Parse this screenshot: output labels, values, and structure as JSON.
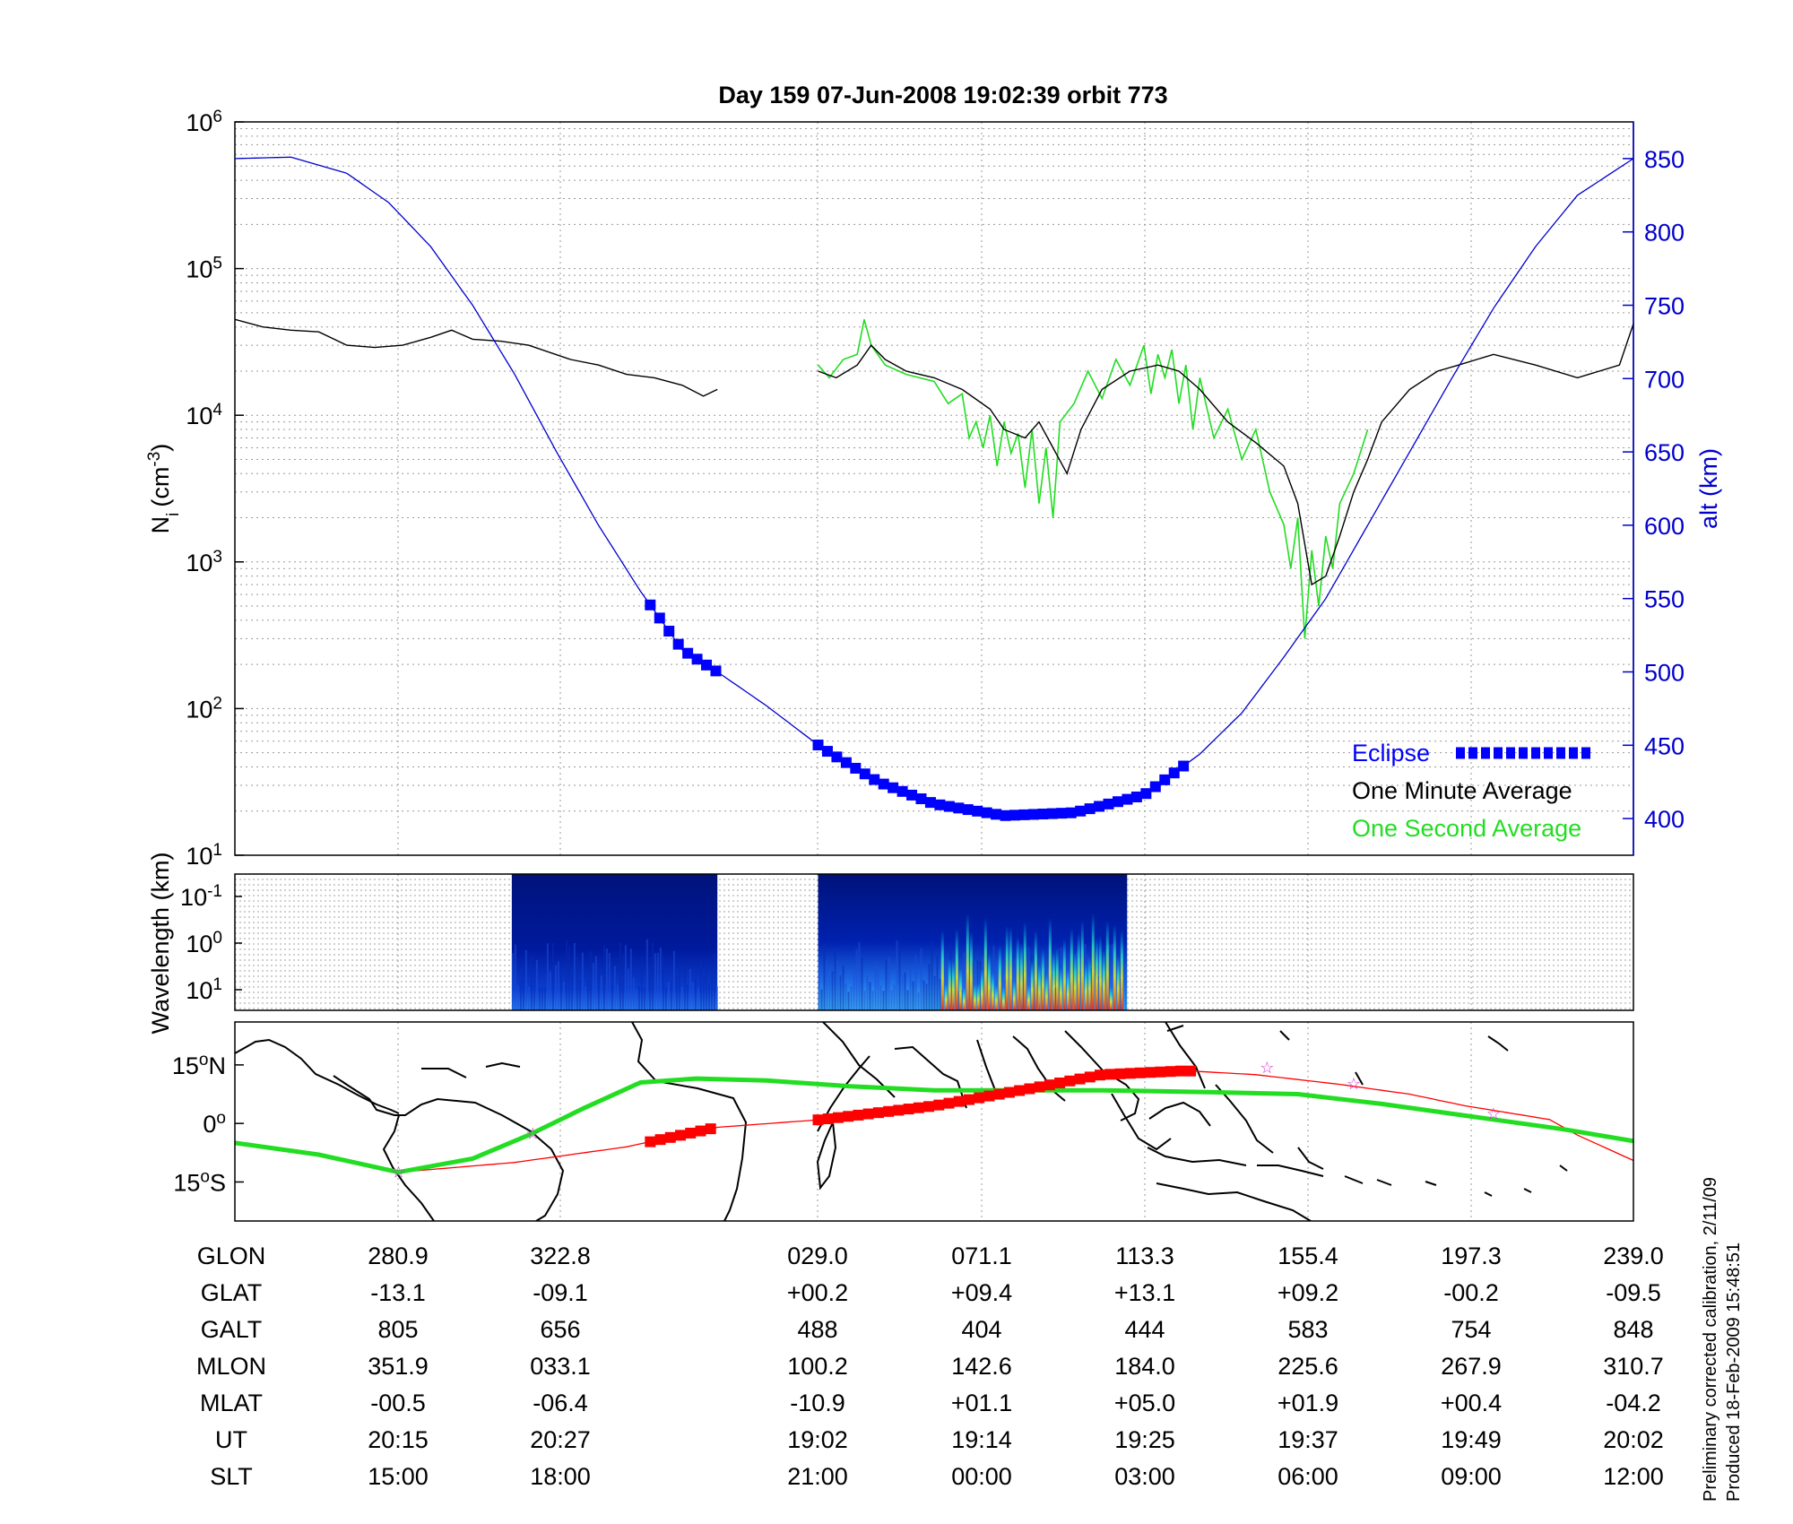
{
  "header": {
    "title": "Day 159  07-Jun-2008 19:02:39   orbit 773"
  },
  "colors": {
    "alt": "#0000cc",
    "minute": "#000000",
    "second": "#22dd22",
    "eclipse": "#0000ff",
    "track_red": "#ff0000",
    "track_green": "#22dd22",
    "star": "#cc33cc"
  },
  "chart_data": [
    {
      "type": "line",
      "panel": "ion-density",
      "ylabel": "N",
      "ylabel_sub": "i",
      "ylabel_unit": "(cm",
      "ylabel_exp": "-3",
      "ylabel_close": ")",
      "yscale": "log",
      "ylim": [
        10,
        1000000
      ],
      "y_ticks": [
        {
          "value": 1000000,
          "base": "10",
          "exp": "6"
        },
        {
          "value": 100000,
          "base": "10",
          "exp": "5"
        },
        {
          "value": 10000,
          "base": "10",
          "exp": "4"
        },
        {
          "value": 1000,
          "base": "10",
          "exp": "3"
        },
        {
          "value": 100,
          "base": "10",
          "exp": "2"
        },
        {
          "value": 10,
          "base": "10",
          "exp": "1"
        }
      ],
      "y2label": "alt (km)",
      "y2lim": [
        375,
        875
      ],
      "y2_ticks": [
        "400",
        "450",
        "500",
        "550",
        "600",
        "650",
        "700",
        "750",
        "800",
        "850"
      ],
      "xlim": [
        0,
        1
      ],
      "grid": true,
      "legend": {
        "placement": "bottom-right",
        "entries": [
          "Eclipse",
          "One Minute Average",
          "One Second Average"
        ]
      },
      "altitude": [
        [
          0.0,
          850
        ],
        [
          0.04,
          851
        ],
        [
          0.08,
          840
        ],
        [
          0.11,
          820
        ],
        [
          0.14,
          790
        ],
        [
          0.17,
          750
        ],
        [
          0.2,
          703
        ],
        [
          0.23,
          650
        ],
        [
          0.26,
          600
        ],
        [
          0.29,
          555
        ],
        [
          0.32,
          515
        ],
        [
          0.345,
          500
        ],
        [
          0.38,
          477
        ],
        [
          0.42,
          448
        ],
        [
          0.46,
          425
        ],
        [
          0.5,
          410
        ],
        [
          0.55,
          402
        ],
        [
          0.6,
          404
        ],
        [
          0.65,
          416
        ],
        [
          0.69,
          444
        ],
        [
          0.72,
          472
        ],
        [
          0.75,
          510
        ],
        [
          0.78,
          550
        ],
        [
          0.81,
          600
        ],
        [
          0.84,
          650
        ],
        [
          0.87,
          700
        ],
        [
          0.9,
          748
        ],
        [
          0.93,
          790
        ],
        [
          0.96,
          825
        ],
        [
          1.0,
          850
        ]
      ],
      "eclipse_segments": [
        [
          0.297,
          0.345
        ],
        [
          0.417,
          0.682
        ]
      ],
      "minute_average": [
        [
          [
            0.0,
            45000
          ],
          [
            0.02,
            40000
          ],
          [
            0.04,
            38000
          ],
          [
            0.06,
            37000
          ],
          [
            0.08,
            30000
          ],
          [
            0.1,
            29000
          ],
          [
            0.12,
            30000
          ],
          [
            0.14,
            34000
          ],
          [
            0.155,
            38000
          ],
          [
            0.17,
            33000
          ],
          [
            0.19,
            32000
          ],
          [
            0.21,
            30000
          ],
          [
            0.24,
            24000
          ],
          [
            0.26,
            22000
          ],
          [
            0.28,
            19000
          ],
          [
            0.3,
            18000
          ],
          [
            0.32,
            16000
          ],
          [
            0.335,
            13500
          ],
          [
            0.345,
            15000
          ]
        ],
        [
          [
            0.417,
            20000
          ],
          [
            0.43,
            18000
          ],
          [
            0.445,
            22000
          ],
          [
            0.455,
            30000
          ],
          [
            0.465,
            24000
          ],
          [
            0.48,
            20000
          ],
          [
            0.5,
            18000
          ],
          [
            0.52,
            15000
          ],
          [
            0.54,
            11000
          ],
          [
            0.55,
            8000
          ],
          [
            0.565,
            7000
          ],
          [
            0.575,
            9000
          ],
          [
            0.585,
            6000
          ],
          [
            0.595,
            4000
          ],
          [
            0.605,
            8000
          ],
          [
            0.62,
            15000
          ],
          [
            0.64,
            20000
          ],
          [
            0.66,
            22000
          ],
          [
            0.675,
            20000
          ],
          [
            0.69,
            15000
          ],
          [
            0.71,
            9000
          ],
          [
            0.73,
            6500
          ],
          [
            0.75,
            4500
          ],
          [
            0.76,
            2500
          ],
          [
            0.77,
            700
          ],
          [
            0.78,
            800
          ],
          [
            0.79,
            1500
          ],
          [
            0.8,
            3000
          ],
          [
            0.81,
            5000
          ],
          [
            0.82,
            9000
          ],
          [
            0.84,
            15000
          ],
          [
            0.86,
            20000
          ],
          [
            0.875,
            22000
          ],
          [
            0.9,
            26000
          ],
          [
            0.93,
            22000
          ],
          [
            0.96,
            18000
          ],
          [
            0.99,
            22000
          ],
          [
            1.0,
            42000
          ]
        ]
      ],
      "second_average": [
        [
          0.417,
          22000
        ],
        [
          0.425,
          18000
        ],
        [
          0.435,
          24000
        ],
        [
          0.445,
          26000
        ],
        [
          0.45,
          45000
        ],
        [
          0.455,
          30000
        ],
        [
          0.465,
          22000
        ],
        [
          0.48,
          19000
        ],
        [
          0.5,
          17000
        ],
        [
          0.51,
          12000
        ],
        [
          0.52,
          14000
        ],
        [
          0.525,
          7000
        ],
        [
          0.53,
          9000
        ],
        [
          0.535,
          6000
        ],
        [
          0.54,
          10000
        ],
        [
          0.545,
          4500
        ],
        [
          0.55,
          9000
        ],
        [
          0.555,
          5500
        ],
        [
          0.56,
          7500
        ],
        [
          0.565,
          3200
        ],
        [
          0.57,
          8000
        ],
        [
          0.575,
          2500
        ],
        [
          0.58,
          6000
        ],
        [
          0.585,
          2000
        ],
        [
          0.59,
          9000
        ],
        [
          0.6,
          12000
        ],
        [
          0.61,
          20000
        ],
        [
          0.62,
          13000
        ],
        [
          0.63,
          24000
        ],
        [
          0.64,
          16000
        ],
        [
          0.65,
          30000
        ],
        [
          0.655,
          14000
        ],
        [
          0.66,
          26000
        ],
        [
          0.665,
          18000
        ],
        [
          0.67,
          28000
        ],
        [
          0.675,
          12000
        ],
        [
          0.68,
          22000
        ],
        [
          0.685,
          8000
        ],
        [
          0.69,
          18000
        ],
        [
          0.7,
          7000
        ],
        [
          0.71,
          11000
        ],
        [
          0.72,
          5000
        ],
        [
          0.73,
          8000
        ],
        [
          0.74,
          3000
        ],
        [
          0.75,
          1800
        ],
        [
          0.755,
          900
        ],
        [
          0.76,
          2000
        ],
        [
          0.765,
          300
        ],
        [
          0.77,
          1200
        ],
        [
          0.775,
          500
        ],
        [
          0.78,
          1500
        ],
        [
          0.785,
          900
        ],
        [
          0.79,
          2500
        ],
        [
          0.8,
          4000
        ],
        [
          0.81,
          8000
        ]
      ]
    },
    {
      "type": "heatmap",
      "panel": "wavelength-spectrogram",
      "ylabel": "Wavelength (km)",
      "yscale": "log",
      "y_ticks": [
        {
          "base": "10",
          "exp": "-1"
        },
        {
          "base": "10",
          "exp": "0"
        },
        {
          "base": "10",
          "exp": "1"
        }
      ],
      "segments": [
        [
          0.198,
          0.345
        ],
        [
          0.417,
          0.638
        ]
      ]
    },
    {
      "type": "line",
      "panel": "ground-track-map",
      "y_ticks": [
        {
          "value": 15,
          "label": "15",
          "unit": "o",
          "hemi": "N"
        },
        {
          "value": 0,
          "label": "0",
          "unit": "o",
          "hemi": ""
        },
        {
          "value": -15,
          "label": "15",
          "unit": "o",
          "hemi": "S"
        }
      ],
      "ylim": [
        -25,
        26
      ],
      "geographic_track": [
        [
          0.0,
          -5
        ],
        [
          0.08,
          -9.5
        ],
        [
          0.117,
          -12.5
        ],
        [
          0.2,
          -10
        ],
        [
          0.28,
          -6
        ],
        [
          0.345,
          -1
        ],
        [
          0.42,
          1
        ],
        [
          0.5,
          4.5
        ],
        [
          0.57,
          9
        ],
        [
          0.62,
          12.5
        ],
        [
          0.68,
          13.5
        ],
        [
          0.73,
          12.5
        ],
        [
          0.79,
          10
        ],
        [
          0.84,
          7.5
        ],
        [
          0.88,
          4.5
        ],
        [
          0.94,
          1
        ],
        [
          0.96,
          -3
        ],
        [
          1.0,
          -9.5
        ]
      ],
      "magnetic_track": [
        [
          0.0,
          -5
        ],
        [
          0.06,
          -8
        ],
        [
          0.117,
          -12.5
        ],
        [
          0.17,
          -9
        ],
        [
          0.21,
          -3
        ],
        [
          0.25,
          4
        ],
        [
          0.29,
          10.5
        ],
        [
          0.33,
          11.5
        ],
        [
          0.38,
          11
        ],
        [
          0.44,
          9.5
        ],
        [
          0.5,
          8.5
        ],
        [
          0.58,
          8.5
        ],
        [
          0.62,
          8.5
        ],
        [
          0.7,
          8
        ],
        [
          0.76,
          7.5
        ],
        [
          0.82,
          5
        ],
        [
          0.88,
          2
        ],
        [
          0.95,
          -1.5
        ],
        [
          1.0,
          -4.5
        ]
      ],
      "eclipse_segments": [
        [
          0.297,
          0.345
        ],
        [
          0.417,
          0.688
        ]
      ],
      "stars": [
        [
          0.117,
          -12.5
        ],
        [
          0.213,
          -2.6
        ],
        [
          0.738,
          14.3
        ],
        [
          0.8,
          10.1
        ],
        [
          0.9,
          2.5
        ]
      ]
    }
  ],
  "coastlines": "schematic",
  "table": {
    "rows": [
      {
        "label": "GLON",
        "values": [
          "280.9",
          "322.8",
          "",
          "029.0",
          "071.1",
          "113.3",
          "155.4",
          "197.3",
          "239.0"
        ]
      },
      {
        "label": "GLAT",
        "values": [
          "-13.1",
          "-09.1",
          "",
          "+00.2",
          "+09.4",
          "+13.1",
          "+09.2",
          "-00.2",
          "-09.5"
        ]
      },
      {
        "label": "GALT",
        "values": [
          "805",
          "656",
          "",
          "488",
          "404",
          "444",
          "583",
          "754",
          "848"
        ]
      },
      {
        "label": "MLON",
        "values": [
          "351.9",
          "033.1",
          "",
          "100.2",
          "142.6",
          "184.0",
          "225.6",
          "267.9",
          "310.7"
        ]
      },
      {
        "label": "MLAT",
        "values": [
          "-00.5",
          "-06.4",
          "",
          "-10.9",
          "+01.1",
          "+05.0",
          "+01.9",
          "+00.4",
          "-04.2"
        ]
      },
      {
        "label": "UT",
        "values": [
          "20:15",
          "20:27",
          "",
          "19:02",
          "19:14",
          "19:25",
          "19:37",
          "19:49",
          "20:02"
        ]
      },
      {
        "label": "SLT",
        "values": [
          "15:00",
          "18:00",
          "",
          "21:00",
          "00:00",
          "03:00",
          "06:00",
          "09:00",
          "12:00"
        ]
      }
    ]
  },
  "footer": {
    "line1": "Preliminary corrected calibration, 2/11/09",
    "line2": "Produced 18-Feb-2009 15:48:51"
  }
}
